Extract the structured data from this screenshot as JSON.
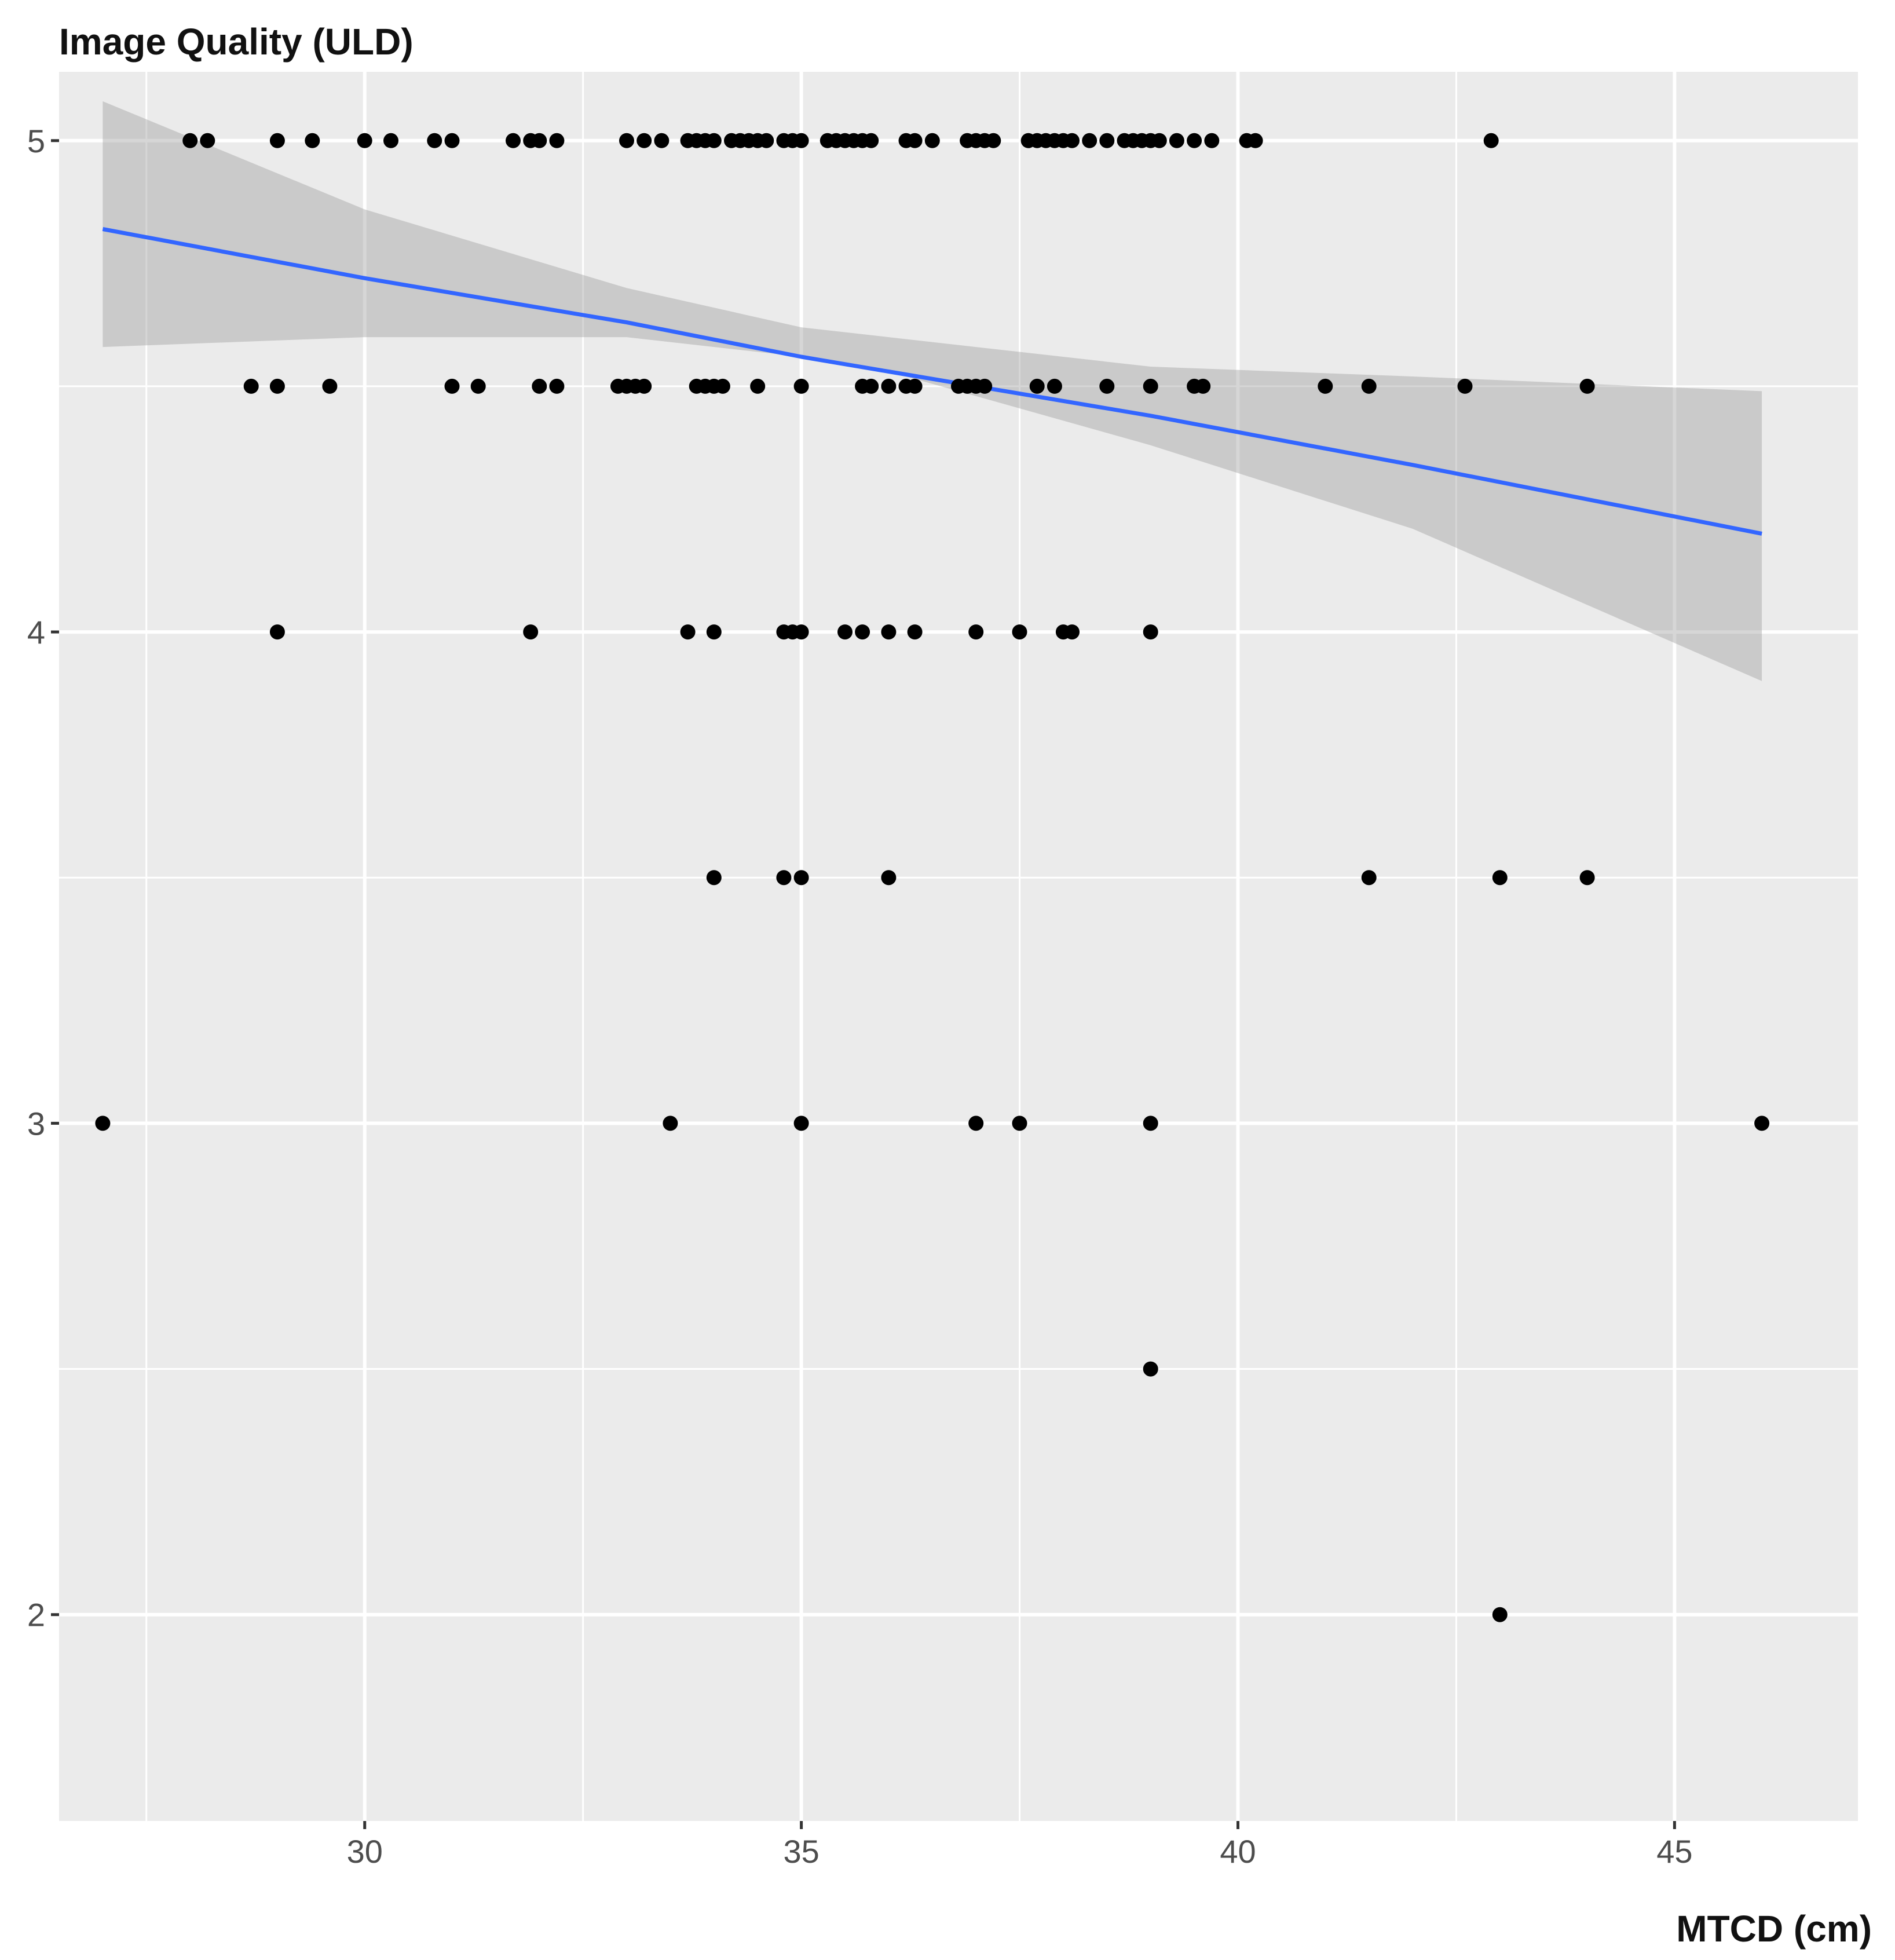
{
  "chart_data": {
    "type": "scatter",
    "title": "Image Quality (ULD)",
    "xlabel": "MTCD (cm)",
    "ylabel": "",
    "xlim": [
      26.5,
      47.1
    ],
    "ylim": [
      1.58,
      5.14
    ],
    "x_ticks": [
      30,
      35,
      40,
      45
    ],
    "x_minor_ticks": [
      27.5,
      32.5,
      37.5,
      42.5
    ],
    "y_ticks": [
      2,
      3,
      4,
      5
    ],
    "y_minor_ticks": [
      2.5,
      3.5,
      4.5
    ],
    "grid": true,
    "colors": {
      "panel_background": "#ebebeb",
      "grid": "#ffffff",
      "points": "#000000",
      "trend_line": "#3366ff",
      "confidence_band": "#999999"
    },
    "points": {
      "x": [
        28.0,
        28.2,
        29.0,
        29.4,
        30.0,
        30.3,
        30.8,
        31.0,
        31.7,
        31.9,
        32.0,
        32.2,
        33.0,
        33.2,
        33.4,
        33.7,
        33.8,
        33.9,
        34.0,
        34.2,
        34.3,
        34.4,
        34.5,
        34.6,
        34.8,
        34.9,
        35.0,
        35.3,
        35.4,
        35.5,
        35.6,
        35.7,
        35.8,
        36.2,
        36.3,
        36.5,
        36.9,
        37.0,
        37.1,
        37.2,
        37.6,
        37.7,
        37.8,
        37.9,
        38.0,
        38.1,
        38.3,
        38.5,
        38.7,
        38.8,
        38.9,
        39.0,
        39.1,
        39.3,
        39.5,
        39.7,
        40.1,
        40.2,
        42.9,
        28.7,
        29.0,
        29.6,
        31.0,
        31.3,
        32.0,
        32.2,
        32.9,
        33.0,
        33.1,
        33.2,
        33.8,
        33.9,
        34.0,
        34.1,
        34.5,
        35.0,
        35.7,
        35.8,
        36.0,
        36.2,
        36.3,
        36.8,
        36.9,
        37.0,
        37.1,
        37.7,
        37.9,
        38.5,
        39.0,
        39.5,
        39.6,
        41.0,
        41.5,
        42.6,
        44.0,
        29.0,
        31.9,
        33.7,
        34.0,
        34.8,
        34.9,
        35.0,
        35.5,
        35.7,
        36.0,
        36.3,
        37.0,
        37.5,
        38.0,
        38.1,
        39.0,
        34.0,
        34.8,
        35.0,
        36.0,
        41.5,
        43.0,
        44.0,
        27.0,
        33.5,
        35.0,
        37.0,
        37.5,
        39.0,
        46.0,
        39.0,
        43.0
      ],
      "y": [
        5,
        5,
        5,
        5,
        5,
        5,
        5,
        5,
        5,
        5,
        5,
        5,
        5,
        5,
        5,
        5,
        5,
        5,
        5,
        5,
        5,
        5,
        5,
        5,
        5,
        5,
        5,
        5,
        5,
        5,
        5,
        5,
        5,
        5,
        5,
        5,
        5,
        5,
        5,
        5,
        5,
        5,
        5,
        5,
        5,
        5,
        5,
        5,
        5,
        5,
        5,
        5,
        5,
        5,
        5,
        5,
        5,
        5,
        5,
        4.5,
        4.5,
        4.5,
        4.5,
        4.5,
        4.5,
        4.5,
        4.5,
        4.5,
        4.5,
        4.5,
        4.5,
        4.5,
        4.5,
        4.5,
        4.5,
        4.5,
        4.5,
        4.5,
        4.5,
        4.5,
        4.5,
        4.5,
        4.5,
        4.5,
        4.5,
        4.5,
        4.5,
        4.5,
        4.5,
        4.5,
        4.5,
        4.5,
        4.5,
        4.5,
        4.5,
        4,
        4,
        4,
        4,
        4,
        4,
        4,
        4,
        4,
        4,
        4,
        4,
        4,
        4,
        4,
        4,
        3.5,
        3.5,
        3.5,
        3.5,
        3.5,
        3.5,
        3.5,
        3,
        3,
        3,
        3,
        3,
        3,
        3,
        2.5,
        2
      ]
    },
    "trend": {
      "x": [
        27.0,
        30.0,
        33.0,
        35.0,
        36.0,
        37.0,
        39.0,
        42.0,
        46.0
      ],
      "y": [
        4.82,
        4.72,
        4.63,
        4.56,
        4.53,
        4.5,
        4.44,
        4.34,
        4.2
      ]
    },
    "confidence_band": {
      "x": [
        27.0,
        30.0,
        33.0,
        35.0,
        36.0,
        37.0,
        39.0,
        42.0,
        46.0
      ],
      "lower": [
        4.58,
        4.6,
        4.6,
        4.56,
        4.53,
        4.48,
        4.38,
        4.21,
        3.9
      ],
      "upper": [
        5.08,
        4.86,
        4.7,
        4.62,
        4.6,
        4.58,
        4.54,
        4.52,
        4.49
      ]
    }
  }
}
